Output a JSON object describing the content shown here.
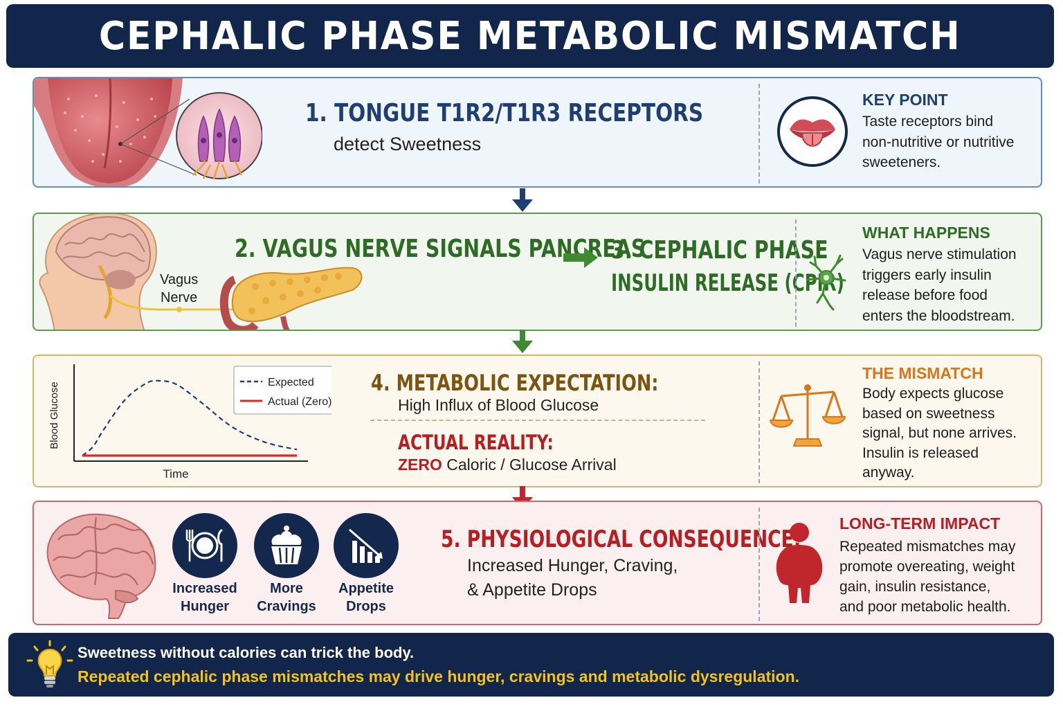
{
  "title": "CEPHALIC PHASE METABOLIC MISMATCH",
  "step1": {
    "title": "1. TONGUE T1R2/T1R3 RECEPTORS",
    "subtitle": "detect Sweetness",
    "side_heading": "KEY POINT",
    "side_lines": [
      "Taste receptors bind",
      "non-nutritive or nutritive",
      "sweeteners."
    ]
  },
  "step2": {
    "title": "2. VAGUS NERVE SIGNALS PANCREAS",
    "nerve_label_1": "Vagus",
    "nerve_label_2": "Nerve"
  },
  "step3": {
    "title_line1": "3. CEPHALIC PHASE",
    "title_line2": "INSULIN RELEASE (CPIR)",
    "side_heading": "WHAT HAPPENS",
    "side_lines": [
      "Vagus nerve stimulation",
      "triggers early insulin",
      "release before food",
      "enters the bloodstream."
    ]
  },
  "step4": {
    "title": "4. METABOLIC EXPECTATION:",
    "subtitle": "High Influx of Blood Glucose",
    "reality_title": "ACTUAL REALITY:",
    "reality_zero": "ZERO",
    "reality_rest": " Caloric / Glucose Arrival",
    "side_heading": "THE MISMATCH",
    "side_lines": [
      "Body expects glucose",
      "based on sweetness",
      "signal, but none arrives.",
      "Insulin is released",
      "anyway."
    ]
  },
  "chart_data": {
    "type": "line",
    "xlabel": "Time",
    "ylabel": "Blood Glucose",
    "series": [
      {
        "name": "Expected",
        "style": "dashed",
        "color": "#1f3a7a",
        "x": [
          0,
          0.05,
          0.1,
          0.2,
          0.3,
          0.36,
          0.44,
          0.55,
          0.7,
          0.85,
          1.0
        ],
        "y": [
          0,
          0.12,
          0.35,
          0.75,
          0.97,
          1.0,
          0.95,
          0.72,
          0.38,
          0.18,
          0.08
        ]
      },
      {
        "name": "Actual (Zero)",
        "style": "solid",
        "color": "#d42a2a",
        "x": [
          0,
          1.0
        ],
        "y": [
          0,
          0
        ]
      }
    ],
    "grid": false,
    "legend": "top-right"
  },
  "step5": {
    "title": "5. PHYSIOLOGICAL CONSEQUENCE:",
    "subtitle_line1": "Increased Hunger, Craving,",
    "subtitle_line2": "& Appetite Drops",
    "icons": [
      {
        "icon": "plate-cutlery-icon",
        "line1": "Increased",
        "line2": "Hunger"
      },
      {
        "icon": "cupcake-icon",
        "line1": "More",
        "line2": "Cravings"
      },
      {
        "icon": "bar-chart-down-icon",
        "line1": "Appetite",
        "line2": "Drops"
      }
    ],
    "side_heading": "LONG-TERM IMPACT",
    "side_lines": [
      "Repeated mismatches may",
      "promote overeating, weight",
      "gain, insulin resistance,",
      "and poor metabolic health."
    ]
  },
  "footer": {
    "line1": "Sweetness without calories can trick the body.",
    "line2": "Repeated cephalic phase mismatches may drive hunger, cravings and metabolic dysregulation."
  },
  "colors": {
    "navy": "#12264b",
    "blue_heading": "#1f3f73",
    "green_heading": "#2e6b25",
    "amber_heading": "#7b5410",
    "orange_heading": "#d9761c",
    "red_heading": "#b61e22",
    "footer_yellow": "#f3c21b"
  }
}
